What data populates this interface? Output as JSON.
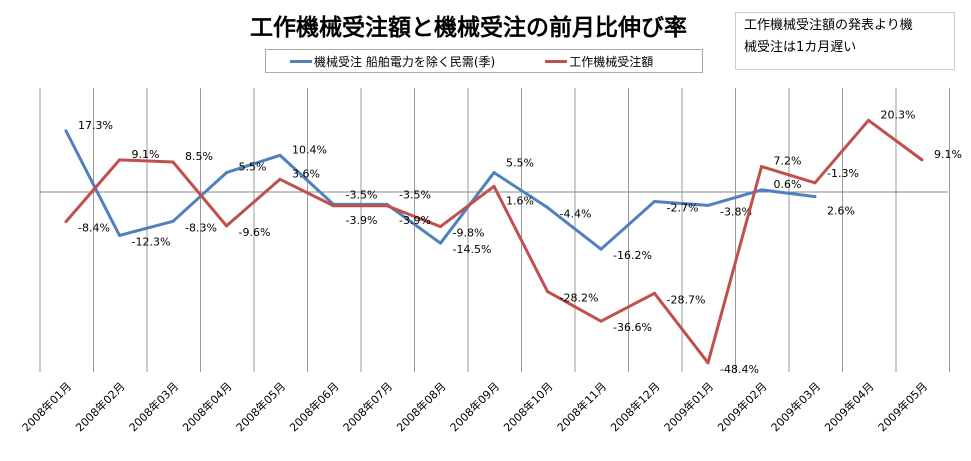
{
  "chart_data": {
    "type": "line",
    "title": "工作機械受注額と機械受注の前月比伸び率",
    "categories": [
      "2008年01月",
      "2008年02月",
      "2008年03月",
      "2008年04月",
      "2008年05月",
      "2008年06月",
      "2008年07月",
      "2008年08月",
      "2008年09月",
      "2008年10月",
      "2008年11月",
      "2008年12月",
      "2009年01月",
      "2009年02月",
      "2009年03月",
      "2009年04月",
      "2009年05月"
    ],
    "series": [
      {
        "name": "機械受注 船舶電力を除く民需(季)",
        "color": "#4F81BD",
        "values": [
          17.3,
          -12.3,
          -8.3,
          5.5,
          10.4,
          -3.5,
          -3.5,
          -14.5,
          5.5,
          -4.4,
          -16.2,
          -2.7,
          -3.8,
          0.6,
          -1.3,
          null,
          null
        ]
      },
      {
        "name": "工作機械受注額",
        "color": "#C0504D",
        "values": [
          -8.4,
          9.1,
          8.5,
          -9.6,
          3.6,
          -3.9,
          -3.9,
          -9.8,
          1.6,
          -28.2,
          -36.6,
          -28.7,
          -48.4,
          7.2,
          2.6,
          20.3,
          9.1
        ]
      }
    ],
    "value_format": "percent, 1 decimal",
    "grid": "vertical lines per category",
    "legend": "top",
    "annotation": "工作機械受注額の発表より機械受注は1カ月遅い"
  },
  "note_lines": [
    "工作機械受注額の発表より機",
    "械受注は1カ月遅い"
  ]
}
